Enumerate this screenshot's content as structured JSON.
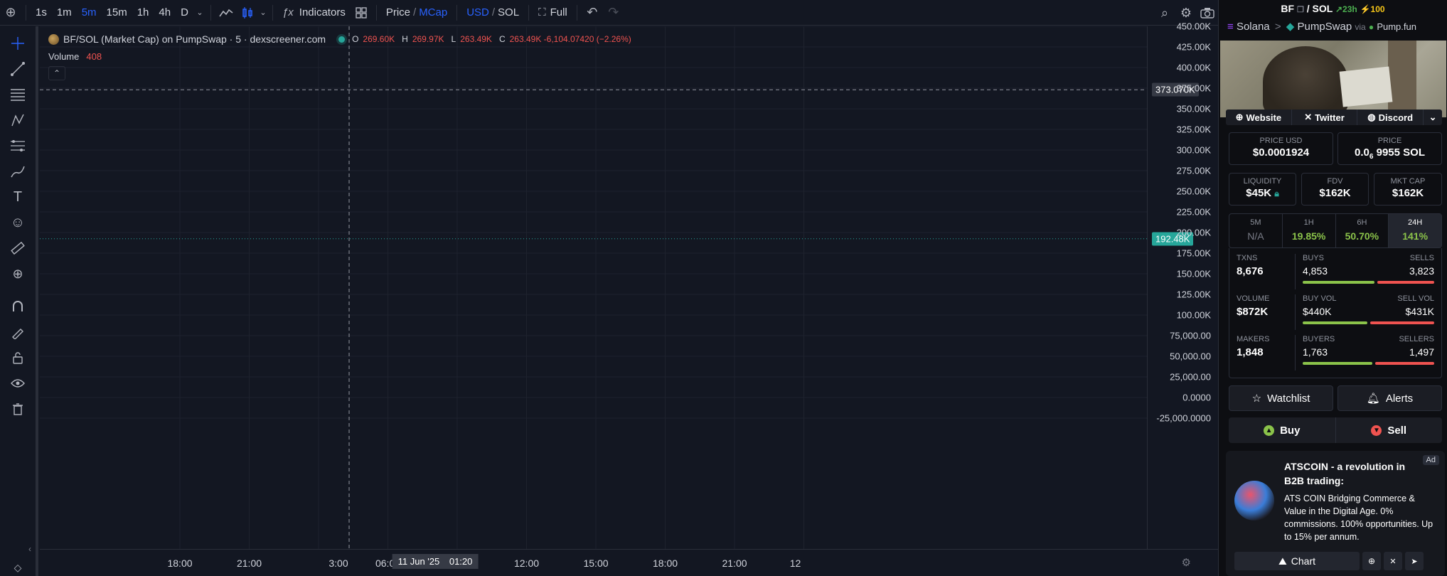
{
  "toolbar": {
    "intervals": [
      "1s",
      "1m",
      "5m",
      "15m",
      "1h",
      "4h",
      "D"
    ],
    "active_interval": "5m",
    "indicators_label": "Indicators",
    "price_label": "Price",
    "slash": "/",
    "mcap_label": "MCap",
    "usd_label": "USD",
    "sol_label": "SOL",
    "full_label": "Full"
  },
  "legend": {
    "title": "BF/SOL (Market Cap) on PumpSwap · 5 · dexscreener.com",
    "o_key": "O",
    "o_val": "269.60K",
    "h_key": "H",
    "h_val": "269.97K",
    "l_key": "L",
    "l_val": "263.49K",
    "c_key": "C",
    "c_val": "263.49K -6,104.07420 (−2.26%)",
    "volume_label": "Volume",
    "volume_value": "408"
  },
  "price_axis": {
    "labels": [
      "450.00K",
      "425.00K",
      "400.00K",
      "375.00K",
      "350.00K",
      "325.00K",
      "300.00K",
      "275.00K",
      "250.00K",
      "225.00K",
      "200.00K",
      "175.00K",
      "150.00K",
      "125.00K",
      "100.00K",
      "75,000.00",
      "50,000.00",
      "25,000.00",
      "0.0000",
      "-25,000.0000"
    ],
    "crosshair_value": "373.070K",
    "last_value": "192.48K"
  },
  "time_axis": {
    "labels": [
      "18:00",
      "21:00",
      "03:00",
      "06:00",
      "09:00",
      "12:00",
      "15:00",
      "18:00",
      "21:00",
      "12"
    ],
    "crosshair_date": "11 Jun '25",
    "crosshair_time": "01:20"
  },
  "chart_data": {
    "type": "candlestick",
    "title": "BF/SOL (Market Cap) on PumpSwap · 5 · dexscreener.com",
    "x_range": [
      "17:10",
      "17:20 next day"
    ],
    "ylim": [
      -25000,
      450000
    ],
    "close_path_approx": [
      [
        "17:20",
        60000
      ],
      [
        "18:00",
        50000
      ],
      [
        "18:30",
        110000
      ],
      [
        "19:00",
        200000
      ],
      [
        "19:20",
        330000
      ],
      [
        "19:50",
        270000
      ],
      [
        "20:20",
        160000
      ],
      [
        "20:40",
        290000
      ],
      [
        "21:30",
        260000
      ],
      [
        "22:00",
        300000
      ],
      [
        "22:30",
        340000
      ],
      [
        "23:20",
        270000
      ],
      [
        "23:50",
        220000
      ],
      [
        "00:40",
        270000
      ],
      [
        "01:20",
        295000
      ],
      [
        "01:50",
        260000
      ],
      [
        "02:20",
        185000
      ],
      [
        "03:00",
        210000
      ],
      [
        "03:40",
        190000
      ],
      [
        "04:40",
        205000
      ],
      [
        "05:20",
        215000
      ],
      [
        "06:20",
        185000
      ],
      [
        "07:00",
        150000
      ],
      [
        "07:30",
        105000
      ],
      [
        "08:00",
        135000
      ],
      [
        "08:40",
        155000
      ],
      [
        "09:20",
        120000
      ],
      [
        "10:00",
        80000
      ],
      [
        "10:40",
        120000
      ],
      [
        "11:20",
        175000
      ],
      [
        "11:50",
        110000
      ],
      [
        "12:20",
        170000
      ],
      [
        "12:40",
        150000
      ],
      [
        "13:10",
        190000
      ],
      [
        "13:40",
        160000
      ],
      [
        "14:20",
        125000
      ],
      [
        "14:50",
        100000
      ],
      [
        "15:20",
        120000
      ],
      [
        "15:50",
        105000
      ],
      [
        "16:20",
        130000
      ],
      [
        "16:50",
        165000
      ],
      [
        "17:10",
        155000
      ],
      [
        "17:20",
        192480
      ]
    ],
    "last_price": 192480,
    "crosshair_price": 373070,
    "volume_series": "histogram below price (green/red)"
  },
  "side": {
    "symbol": "BF",
    "slash": "/",
    "quote": "SOL",
    "age": "23h",
    "boosts": "100",
    "chain": "Solana",
    "sep": ">",
    "dex": "PumpSwap",
    "via": "via",
    "launchpad": "Pump.fun",
    "website": "Website",
    "twitter": "Twitter",
    "discord": "Discord",
    "price_usd_label": "PRICE USD",
    "price_usd": "$0.0001924",
    "price_sol_label": "PRICE",
    "price_sol_prefix": "0.0",
    "price_sol_sub": "6",
    "price_sol_rest": "9955 SOL",
    "liquidity_label": "LIQUIDITY",
    "liquidity": "$45K",
    "fdv_label": "FDV",
    "fdv": "$162K",
    "mcap_label": "MKT CAP",
    "mcap": "$162K",
    "tabs": [
      {
        "k": "5M",
        "v": "N/A",
        "color": "#787b86"
      },
      {
        "k": "1H",
        "v": "19.85%",
        "color": "#8bc34a"
      },
      {
        "k": "6H",
        "v": "50.70%",
        "color": "#8bc34a"
      },
      {
        "k": "24H",
        "v": "141%",
        "color": "#8bc34a"
      }
    ],
    "txns_label": "TXNS",
    "txns": "8,676",
    "buys_label": "BUYS",
    "buys": "4,853",
    "sells_label": "SELLS",
    "sells": "3,823",
    "volume_label": "VOLUME",
    "volume": "$872K",
    "buy_vol_label": "BUY VOL",
    "buy_vol": "$440K",
    "sell_vol_label": "SELL VOL",
    "sell_vol": "$431K",
    "makers_label": "MAKERS",
    "makers": "1,848",
    "buyers_label": "BUYERS",
    "buyers": "1,763",
    "sellers_label": "SELLERS",
    "sellers": "1,497",
    "buy_ratios": [
      0.56,
      0.505,
      0.54
    ],
    "watchlist": "Watchlist",
    "alerts": "Alerts",
    "buy": "Buy",
    "sell": "Sell"
  },
  "ad": {
    "tag": "Ad",
    "title": "ATSCOIN - a revolution in B2B trading:",
    "body": "ATS COIN Bridging Commerce & Value in the Digital Age. 0% commissions. 100% opportunities. Up to 15% per annum.",
    "chart_button": "Chart"
  },
  "colors": {
    "up": "#26a69a",
    "down": "#ef5350",
    "accent": "#2962ff",
    "bg": "#131722"
  }
}
